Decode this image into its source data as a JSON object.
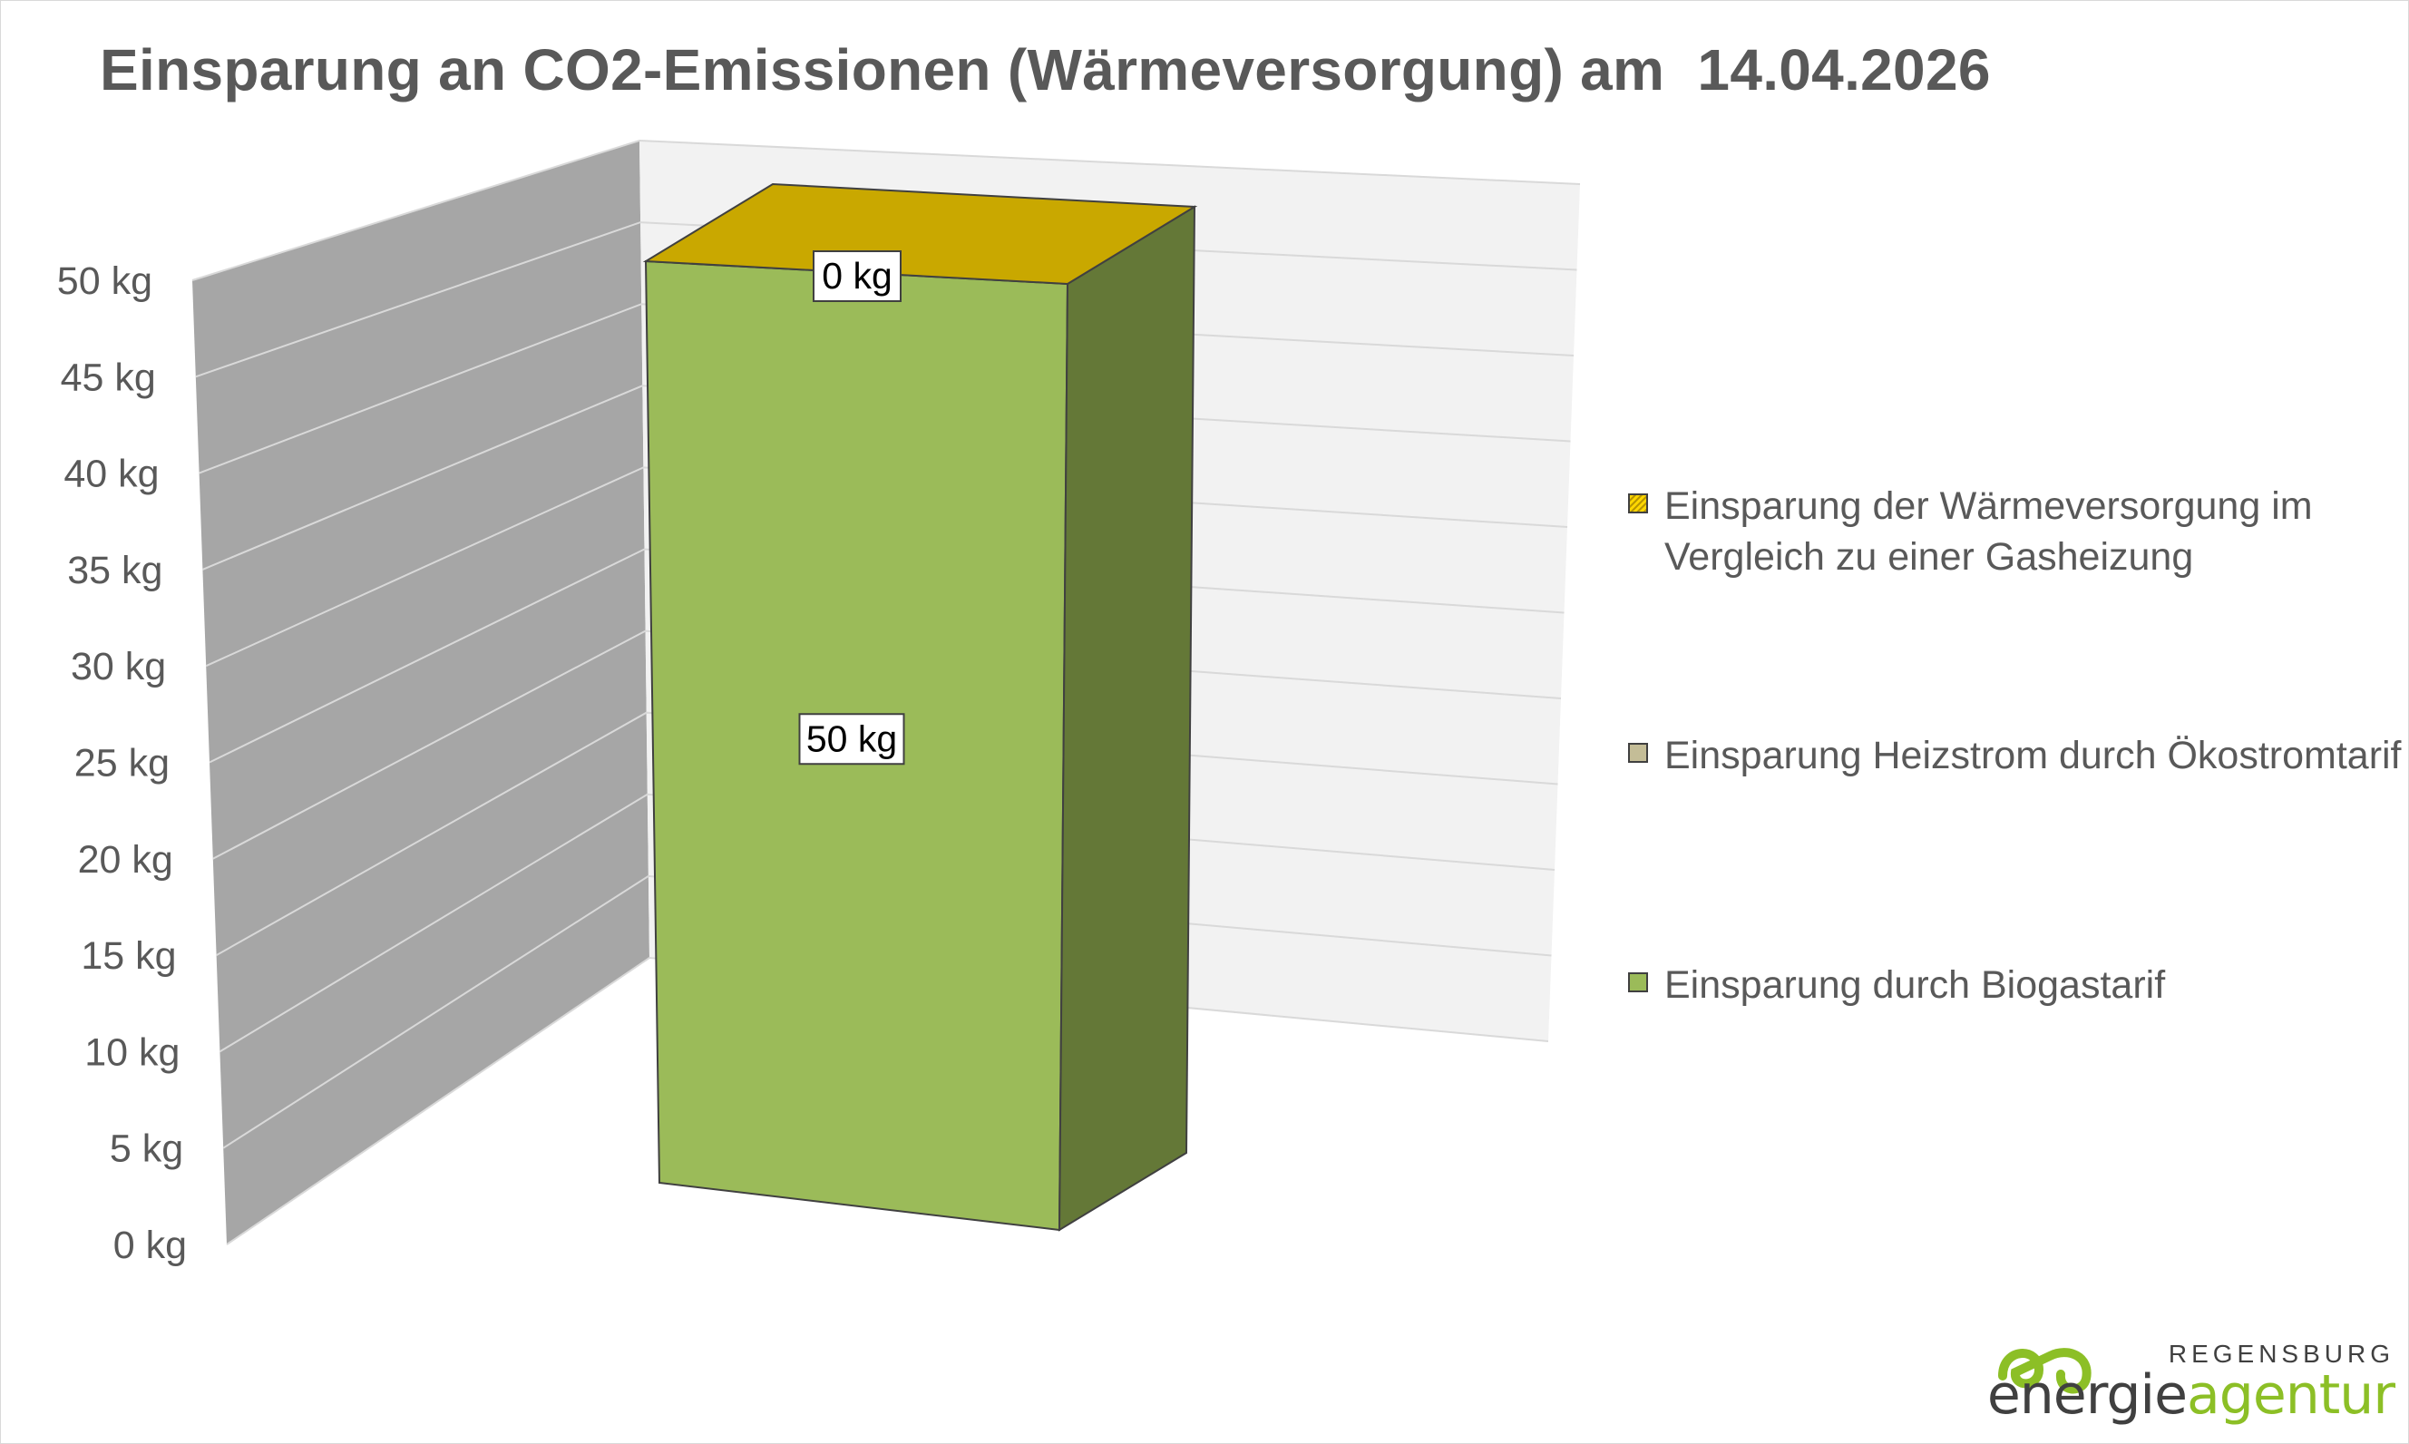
{
  "chart_data": {
    "type": "bar",
    "stacked": true,
    "three_d": true,
    "title": "Einsparung an CO2-Emissionen (Wärmeversorgung) am  14.04.2026",
    "categories": [
      ""
    ],
    "ylim": [
      0,
      50
    ],
    "y_ticks": [
      "0 kg",
      "5 kg",
      "10 kg",
      "15 kg",
      "20 kg",
      "25 kg",
      "30 kg",
      "35 kg",
      "40 kg",
      "45 kg",
      "50 kg"
    ],
    "y_tick_values": [
      0,
      5,
      10,
      15,
      20,
      25,
      30,
      35,
      40,
      45,
      50
    ],
    "grid": true,
    "legend_position": "right",
    "series": [
      {
        "name": "Einsparung durch Biogastarif",
        "values": [
          50
        ],
        "label": "50 kg",
        "color": "#9bbb59",
        "side_color": "#647837"
      },
      {
        "name": "Einsparung Heizstrom durch Ökostromtarif",
        "values": [
          0
        ],
        "label": "",
        "color": "#c4bd97"
      },
      {
        "name": "Einsparung der Wärmeversorgung im Vergleich zu einer Gasheizung",
        "values": [
          0
        ],
        "label": "0 kg",
        "color": "#c9a800",
        "pattern": "hatched"
      }
    ],
    "legend_order": [
      2,
      1,
      0
    ]
  },
  "colors": {
    "wall_back": "#f2f2f2",
    "wall_side": "#a6a6a6",
    "gridline": "#d9d9d9",
    "text": "#595959"
  },
  "logo": {
    "city": "REGENSBURG",
    "word_main": "energie",
    "word_accent": "agentur"
  }
}
